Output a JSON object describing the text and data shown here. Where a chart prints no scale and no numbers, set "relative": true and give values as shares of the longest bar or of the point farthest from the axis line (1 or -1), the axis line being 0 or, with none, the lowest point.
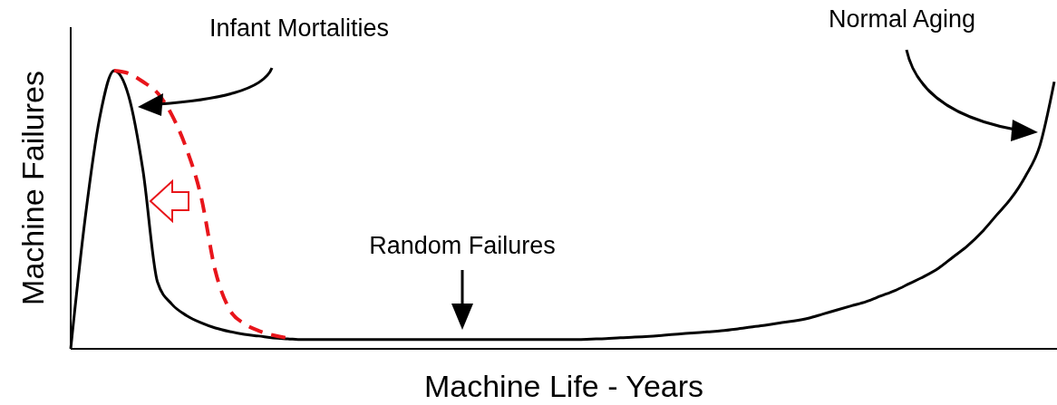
{
  "chart_data": {
    "type": "line",
    "relative": true,
    "xlabel": "Machine Life - Years",
    "ylabel": "Machine Failures",
    "categories": [
      null,
      null,
      null,
      null,
      null,
      null,
      null,
      null,
      null,
      null,
      null,
      null,
      null,
      null,
      null,
      null,
      null,
      null,
      null,
      null,
      null,
      null,
      null,
      null,
      null,
      null,
      null,
      null,
      null,
      null,
      null,
      null,
      null,
      null,
      null,
      null,
      null,
      null,
      null,
      null,
      null,
      null,
      null,
      null,
      null,
      null,
      null,
      null,
      null,
      null,
      null,
      null,
      null,
      null,
      null,
      null,
      null,
      null,
      null,
      null,
      null,
      null,
      null,
      null,
      null,
      null,
      null,
      null,
      null
    ],
    "series": [
      {
        "color": "#000000",
        "line_style": "solid",
        "values": [
          0,
          0.47,
          0.83,
          1,
          0.91,
          0.64,
          0.24,
          0.16,
          0.12,
          0.094,
          0.075,
          0.062,
          0.052,
          0.046,
          0.039,
          0.036,
          0.033,
          0.033,
          0.033,
          0.033,
          0.033,
          0.033,
          0.033,
          0.033,
          0.033,
          0.033,
          0.033,
          0.033,
          0.033,
          0.033,
          0.033,
          0.033,
          0.033,
          0.033,
          0.033,
          0.033,
          0.035,
          0.037,
          0.04,
          0.042,
          0.045,
          0.049,
          0.053,
          0.057,
          0.061,
          0.065,
          0.071,
          0.078,
          0.085,
          0.093,
          0.1,
          0.11,
          0.125,
          0.14,
          0.155,
          0.17,
          0.19,
          0.21,
          0.235,
          0.26,
          0.29,
          0.33,
          0.37,
          0.42,
          0.48,
          0.54,
          0.62,
          0.73,
          0.96
        ]
      },
      {
        "color": "#e8151b",
        "line_style": "dashed",
        "values": [
          null,
          null,
          null,
          1,
          0.99,
          0.96,
          0.92,
          0.84,
          0.72,
          0.55,
          0.28,
          0.14,
          0.09,
          0.065,
          0.049,
          0.039,
          null,
          null,
          null,
          null,
          null,
          null,
          null,
          null,
          null,
          null,
          null,
          null,
          null,
          null,
          null,
          null,
          null,
          null,
          null,
          null,
          null,
          null,
          null,
          null,
          null,
          null,
          null,
          null,
          null,
          null,
          null,
          null,
          null,
          null,
          null,
          null,
          null,
          null,
          null,
          null,
          null,
          null,
          null,
          null,
          null,
          null,
          null,
          null,
          null,
          null,
          null,
          null,
          null
        ]
      }
    ],
    "annotations": [
      "Infant Mortalities",
      "Random Failures",
      "Normal Aging"
    ]
  }
}
